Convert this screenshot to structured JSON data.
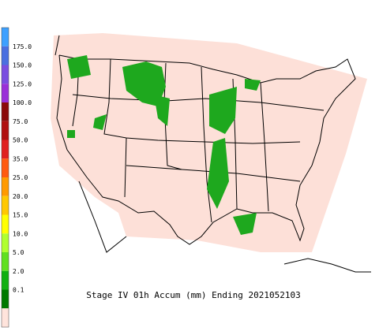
{
  "title": "Stage IV 01h Accum (mm) Ending 2021052103",
  "legend": {
    "labels": [
      "175.0",
      "150.0",
      "125.0",
      "100.0",
      "75.0",
      "50.0",
      "35.0",
      "25.0",
      "20.0",
      "15.0",
      "10.0",
      "5.0",
      "2.0",
      "0.1"
    ],
    "colors": [
      "#3da0ff",
      "#4a6fe0",
      "#7a4de0",
      "#9a30d8",
      "#8b0a0a",
      "#b01010",
      "#e02020",
      "#ff5a10",
      "#ff9a00",
      "#ffc800",
      "#ffff00",
      "#b0ff30",
      "#60e020",
      "#10b010",
      "#007a00",
      "#ffe4dc"
    ]
  }
}
